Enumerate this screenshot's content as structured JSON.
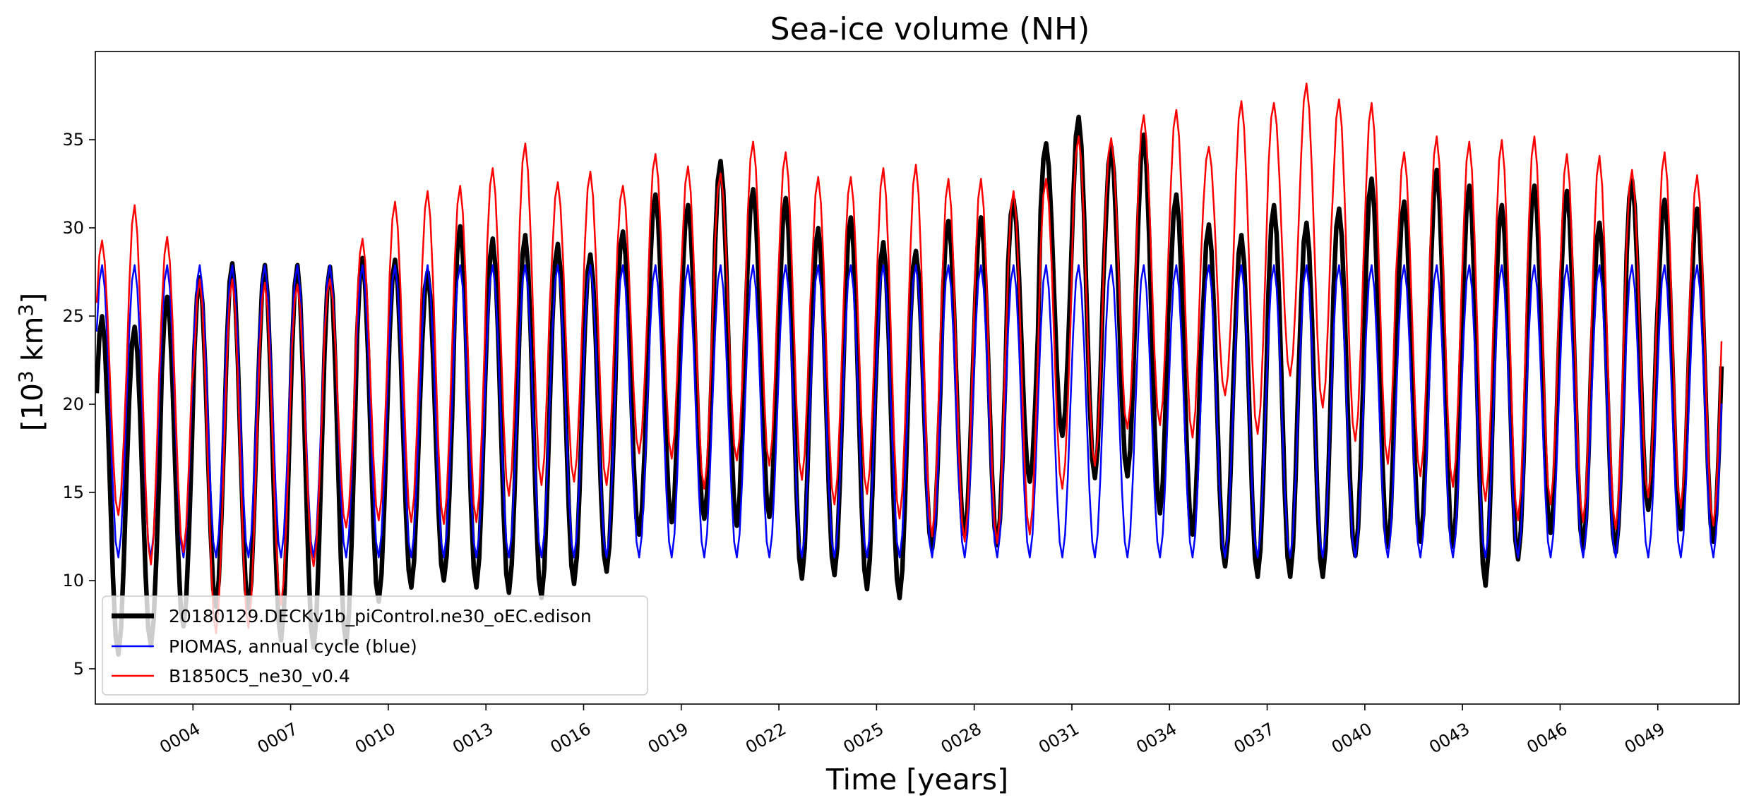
{
  "chart_data": {
    "type": "line",
    "title": "Sea-ice volume (NH)",
    "xlabel": "Time [years]",
    "ylabel": "[10³ km³]",
    "ylabel_parts": {
      "open": "[10",
      "exp1": "3",
      "unit": " km",
      "exp2": "3",
      "close": "]"
    },
    "xlim": [
      1,
      51.5
    ],
    "ylim": [
      3,
      40
    ],
    "yticks": [
      5,
      10,
      15,
      20,
      25,
      30,
      35
    ],
    "xtick_values": [
      4,
      7,
      10,
      13,
      16,
      19,
      22,
      25,
      28,
      31,
      34,
      37,
      40,
      43,
      46,
      49
    ],
    "xtick_labels": [
      "0004",
      "0007",
      "0010",
      "0013",
      "0016",
      "0019",
      "0022",
      "0025",
      "0028",
      "0031",
      "0034",
      "0037",
      "0040",
      "0043",
      "0046",
      "0049"
    ],
    "grid": false,
    "legend_position": "lower-left",
    "colors": {
      "black": "#000000",
      "blue": "#0000ff",
      "red": "#ff0000"
    },
    "series": [
      {
        "name": "20180129.DECKv1b_piControl.ne30_oEC.edison",
        "color": "#000000",
        "annual_max": [
          25.0,
          24.4,
          26.1,
          27.2,
          28.0,
          27.9,
          27.9,
          27.8,
          28.3,
          28.2,
          27.5,
          30.1,
          29.4,
          29.6,
          29.1,
          28.5,
          29.8,
          31.9,
          31.3,
          33.8,
          32.2,
          31.7,
          30.0,
          30.6,
          29.2,
          28.7,
          30.4,
          30.6,
          31.6,
          34.8,
          36.3,
          34.6,
          35.3,
          31.9,
          30.2,
          29.6,
          31.3,
          30.3,
          31.1,
          32.8,
          31.5,
          33.3,
          32.4,
          31.3,
          32.4,
          32.1,
          30.3,
          32.7,
          31.6,
          31.1
        ],
        "annual_min": [
          5.8,
          6.3,
          7.4,
          8.5,
          8.4,
          6.6,
          6.2,
          6.4,
          8.8,
          9.6,
          10.0,
          9.6,
          9.3,
          9.0,
          9.8,
          10.5,
          12.6,
          13.3,
          13.5,
          13.1,
          13.6,
          10.1,
          10.3,
          9.5,
          9.0,
          11.8,
          12.6,
          12.0,
          15.6,
          18.2,
          15.8,
          15.9,
          13.8,
          12.6,
          10.8,
          10.2,
          10.2,
          10.2,
          11.4,
          11.9,
          12.2,
          11.9,
          9.7,
          11.2,
          12.7,
          11.8,
          11.6,
          14.0,
          12.9,
          12.2
        ]
      },
      {
        "name": "PIOMAS, annual cycle (blue)",
        "color": "#0000ff",
        "annual_max_value": 27.9,
        "annual_min_value": 11.3
      },
      {
        "name": "B1850C5_ne30_v0.4",
        "color": "#ff0000",
        "annual_max": [
          29.3,
          31.3,
          29.5,
          27.1,
          27.1,
          26.9,
          26.8,
          27.1,
          29.4,
          31.5,
          32.1,
          32.4,
          33.4,
          34.8,
          32.6,
          33.2,
          32.4,
          34.2,
          33.5,
          33.1,
          34.9,
          34.3,
          32.9,
          32.9,
          33.4,
          33.6,
          32.8,
          32.8,
          32.1,
          32.8,
          35.2,
          35.1,
          36.4,
          36.7,
          34.6,
          37.2,
          37.1,
          38.2,
          37.3,
          37.1,
          34.3,
          35.2,
          34.9,
          35.0,
          35.2,
          34.2,
          34.1,
          33.3,
          34.3,
          33.0
        ],
        "annual_min": [
          13.7,
          10.9,
          11.6,
          7.0,
          7.3,
          8.6,
          10.8,
          13.0,
          13.4,
          13.3,
          13.2,
          13.3,
          14.8,
          15.4,
          15.6,
          15.4,
          17.2,
          16.9,
          15.2,
          16.8,
          16.5,
          15.7,
          14.3,
          14.9,
          13.5,
          12.5,
          12.2,
          12.1,
          12.6,
          15.2,
          16.5,
          18.6,
          18.8,
          18.1,
          20.5,
          18.3,
          21.6,
          19.8,
          17.9,
          16.6,
          15.9,
          15.3,
          14.5,
          13.4,
          14.3,
          13.3,
          12.9,
          14.7,
          14.1,
          13.1
        ]
      }
    ]
  }
}
